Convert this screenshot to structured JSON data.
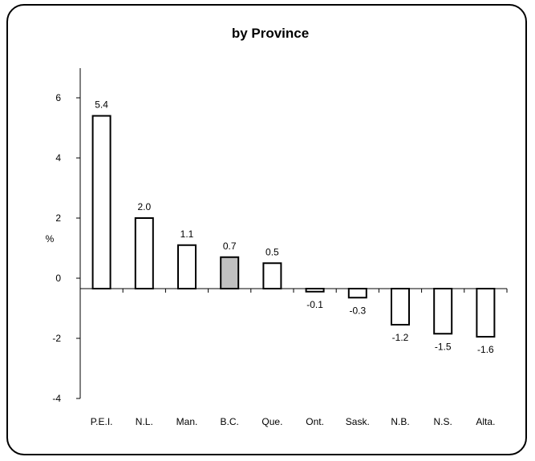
{
  "chart_data": {
    "type": "bar",
    "title": "by Province",
    "ylabel": "%",
    "xlabel": "",
    "ylim": [
      -4,
      7
    ],
    "yticks": [
      6,
      4,
      2,
      0,
      -2,
      -4
    ],
    "categories": [
      "P.E.I.",
      "N.L.",
      "Man.",
      "B.C.",
      "Que.",
      "Ont.",
      "Sask.",
      "N.B.",
      "N.S.",
      "Alta."
    ],
    "values": [
      5.4,
      2.0,
      1.1,
      0.7,
      0.5,
      -0.1,
      -0.3,
      -1.2,
      -1.5,
      -1.6
    ],
    "data_labels": [
      "5.4",
      "2.0",
      "1.1",
      "0.7",
      "0.5",
      "-0.1",
      "-0.3",
      "-1.2",
      "-1.5",
      "-1.6"
    ],
    "highlight_category": "B.C.",
    "colors": {
      "bar_fill": "#ffffff",
      "highlight_fill": "#c0c0c0",
      "stroke": "#000000"
    },
    "grid": false,
    "legend": "none"
  }
}
